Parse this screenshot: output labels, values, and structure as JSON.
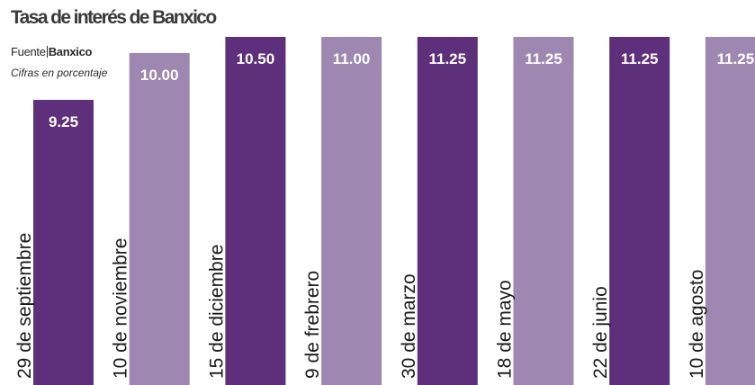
{
  "header": {
    "title": "Tasa de interés de Banxico",
    "source_prefix": "Fuente",
    "source_name": "Banxico",
    "units_note": "Cifras en porcentaje"
  },
  "colors": {
    "dark_purple": "#5e2f7a",
    "light_purple": "#9e87b0",
    "label_text": "#ffffff",
    "category_text": "#1a1a1a"
  },
  "chart_data": {
    "type": "bar",
    "title": "Tasa de interés de Banxico",
    "categories": [
      "29 de septiembre",
      "10 de noviembre",
      "15 de diciembre",
      "9 de frebrero",
      "30 de marzo",
      "18 de mayo",
      "22 de junio",
      "10 de agosto"
    ],
    "values": [
      9.25,
      10.0,
      10.5,
      11.0,
      11.25,
      11.25,
      11.25,
      11.25
    ],
    "value_labels": [
      "9.25",
      "10.00",
      "10.50",
      "11.00",
      "11.25",
      "11.25",
      "11.25",
      "11.25"
    ],
    "bar_colors": [
      "dark",
      "light",
      "dark",
      "light",
      "dark",
      "light",
      "dark",
      "light"
    ],
    "xlabel": "",
    "ylabel": "",
    "grid": false,
    "legend": "none"
  }
}
